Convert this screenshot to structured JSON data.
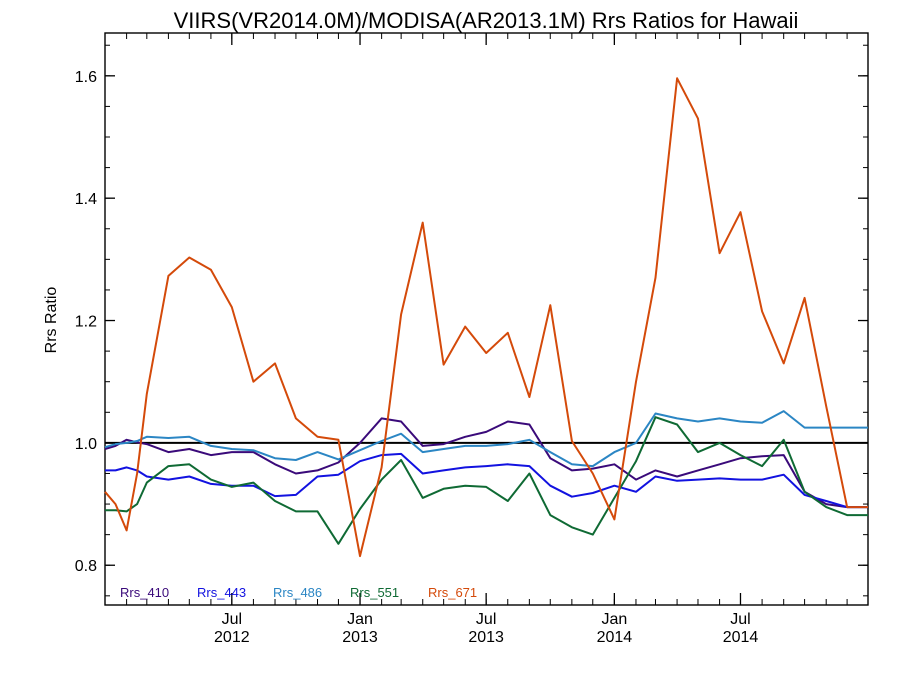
{
  "chart_data": {
    "type": "line",
    "title": "VIIRS(VR2014.0M)/MODISA(AR2013.1M)  Rrs Ratios for Hawaii",
    "ylabel": "Rrs Ratio",
    "xlabel": "",
    "xlim": [
      "2012-01-01",
      "2014-12-31"
    ],
    "ylim": [
      0.735,
      1.67
    ],
    "yticks": [
      0.8,
      1.0,
      1.2,
      1.4,
      1.6
    ],
    "ytick_labels": [
      "0.8",
      "1.0",
      "1.2",
      "1.4",
      "1.6"
    ],
    "xticks": [
      {
        "date": "2012-07-01",
        "month": "Jul",
        "year": "2012"
      },
      {
        "date": "2013-01-01",
        "month": "Jan",
        "year": "2013"
      },
      {
        "date": "2013-07-01",
        "month": "Jul",
        "year": "2013"
      },
      {
        "date": "2014-01-01",
        "month": "Jan",
        "year": "2014"
      },
      {
        "date": "2014-07-01",
        "month": "Jul",
        "year": "2014"
      }
    ],
    "reference_line": 1.0,
    "grid": false,
    "legend_position": "bottom-left",
    "x": [
      "2012-01-01",
      "2012-01-16",
      "2012-02-01",
      "2012-02-16",
      "2012-03-01",
      "2012-04-01",
      "2012-05-01",
      "2012-06-01",
      "2012-07-01",
      "2012-08-01",
      "2012-09-01",
      "2012-10-01",
      "2012-11-01",
      "2012-12-01",
      "2013-01-01",
      "2013-02-01",
      "2013-03-01",
      "2013-04-01",
      "2013-05-01",
      "2013-06-01",
      "2013-07-01",
      "2013-08-01",
      "2013-09-01",
      "2013-10-01",
      "2013-11-01",
      "2013-12-01",
      "2014-01-01",
      "2014-02-01",
      "2014-03-01",
      "2014-04-01",
      "2014-05-01",
      "2014-06-01",
      "2014-07-01",
      "2014-08-01",
      "2014-09-01",
      "2014-10-01",
      "2014-11-01",
      "2014-12-01",
      "2014-12-31"
    ],
    "series": [
      {
        "name": "Rrs_410",
        "color": "#3a0a7a",
        "values": [
          0.99,
          0.995,
          1.005,
          1.001,
          0.998,
          0.985,
          0.99,
          0.98,
          0.985,
          0.985,
          0.965,
          0.95,
          0.955,
          0.968,
          1.0,
          1.04,
          1.035,
          0.995,
          0.998,
          1.01,
          1.018,
          1.035,
          1.03,
          0.975,
          0.955,
          0.958,
          0.965,
          0.94,
          0.955,
          0.945,
          0.955,
          0.965,
          0.975,
          0.978,
          0.98,
          0.92,
          0.9,
          0.895,
          0.895
        ]
      },
      {
        "name": "Rrs_443",
        "color": "#1212e0",
        "values": [
          0.955,
          0.955,
          0.96,
          0.955,
          0.945,
          0.94,
          0.945,
          0.933,
          0.93,
          0.93,
          0.913,
          0.915,
          0.945,
          0.948,
          0.97,
          0.98,
          0.982,
          0.95,
          0.955,
          0.96,
          0.962,
          0.965,
          0.962,
          0.93,
          0.912,
          0.918,
          0.93,
          0.92,
          0.945,
          0.938,
          0.94,
          0.942,
          0.94,
          0.94,
          0.948,
          0.915,
          0.905,
          0.895,
          0.895
        ]
      },
      {
        "name": "Rrs_486",
        "color": "#2b86c4",
        "values": [
          0.993,
          0.998,
          1.0,
          1.003,
          1.01,
          1.008,
          1.01,
          0.995,
          0.99,
          0.988,
          0.975,
          0.972,
          0.985,
          0.973,
          0.988,
          1.003,
          1.015,
          0.985,
          0.99,
          0.995,
          0.995,
          0.998,
          1.005,
          0.985,
          0.965,
          0.962,
          0.985,
          1.0,
          1.048,
          1.04,
          1.035,
          1.04,
          1.035,
          1.033,
          1.052,
          1.025,
          1.025,
          1.025,
          1.025
        ]
      },
      {
        "name": "Rrs_551",
        "color": "#0f6a34",
        "values": [
          0.89,
          0.89,
          0.888,
          0.9,
          0.935,
          0.962,
          0.965,
          0.94,
          0.928,
          0.935,
          0.905,
          0.888,
          0.888,
          0.835,
          0.892,
          0.94,
          0.972,
          0.91,
          0.925,
          0.93,
          0.928,
          0.905,
          0.95,
          0.882,
          0.862,
          0.85,
          0.91,
          0.97,
          1.042,
          1.03,
          0.985,
          1.0,
          0.98,
          0.962,
          1.005,
          0.92,
          0.895,
          0.882,
          0.882
        ]
      },
      {
        "name": "Rrs_671",
        "color": "#d44a0a",
        "values": [
          0.92,
          0.9,
          0.857,
          0.95,
          1.08,
          1.273,
          1.303,
          1.283,
          1.222,
          1.1,
          1.13,
          1.04,
          1.01,
          1.005,
          0.815,
          0.96,
          1.21,
          1.36,
          1.128,
          1.19,
          1.147,
          1.18,
          1.075,
          1.225,
          1.003,
          0.95,
          0.875,
          1.1,
          1.27,
          1.596,
          1.53,
          1.31,
          1.377,
          1.215,
          1.13,
          1.237,
          1.06,
          0.895,
          0.895
        ]
      }
    ]
  }
}
